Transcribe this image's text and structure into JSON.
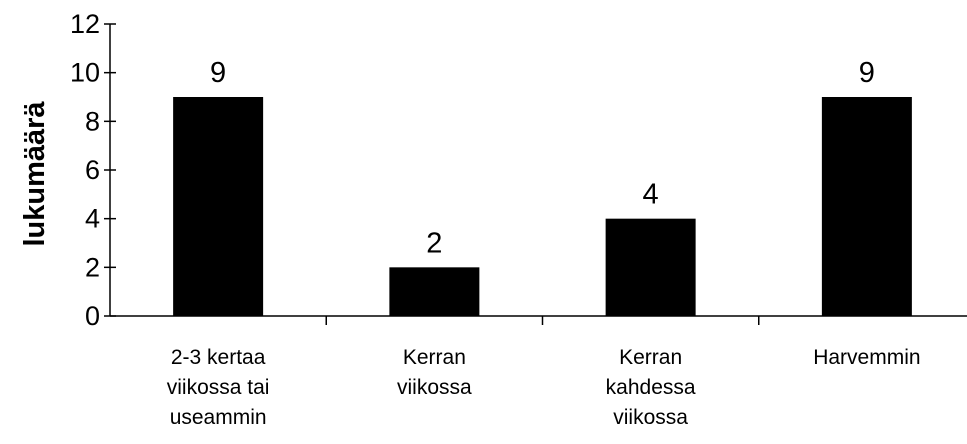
{
  "chart_data": {
    "type": "bar",
    "categories": [
      [
        "2-3 kertaa",
        "viikossa tai",
        "useammin"
      ],
      [
        "Kerran",
        "viikossa"
      ],
      [
        "Kerran",
        "kahdessa",
        "viikossa"
      ],
      [
        "Harvemmin"
      ]
    ],
    "values": [
      9,
      2,
      4,
      9
    ],
    "data_labels": [
      "9",
      "2",
      "4",
      "9"
    ],
    "title": "",
    "xlabel": "",
    "ylabel": "lukumäärä",
    "ylim": [
      0,
      12
    ],
    "yticks": [
      0,
      2,
      4,
      6,
      8,
      10,
      12
    ],
    "grid": false,
    "bar_color": "#000000"
  }
}
